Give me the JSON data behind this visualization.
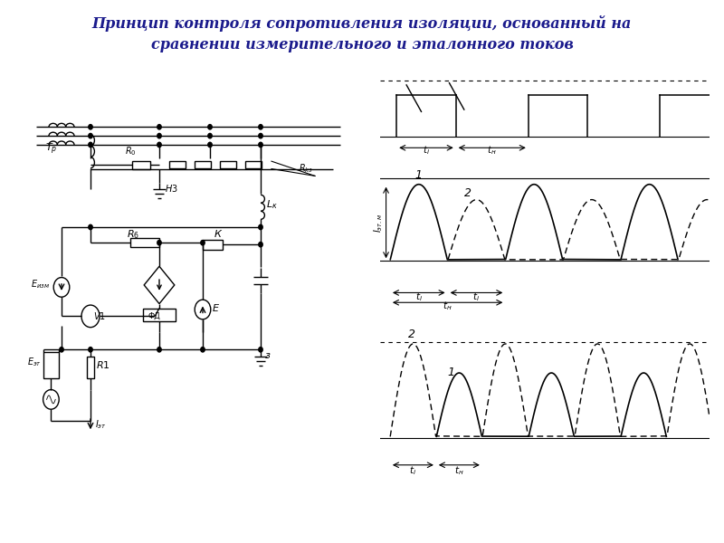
{
  "title_line1": "Принцип контроля сопротивления изоляции, основанный на",
  "title_line2": "сравнении измерительного и эталонного токов",
  "title_color": "#1a1a8c",
  "bg_color": "#ffffff",
  "line_color": "#000000"
}
